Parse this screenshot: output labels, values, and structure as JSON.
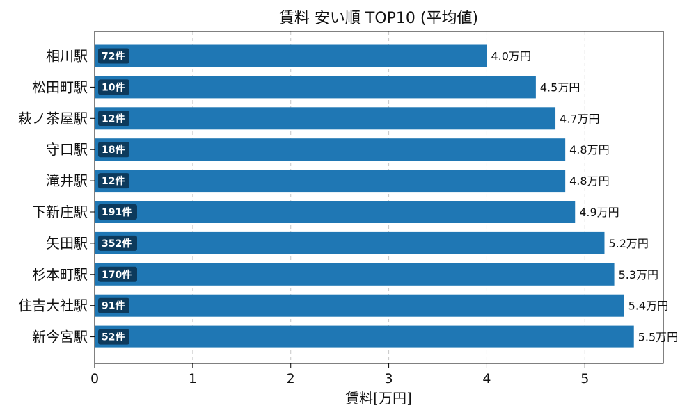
{
  "chart_data": {
    "type": "bar",
    "orientation": "horizontal",
    "title": "賃料 安い順 TOP10 (平均値)",
    "xlabel": "賃料[万円]",
    "ylabel": "",
    "xlim": [
      0,
      5.8
    ],
    "xticks": [
      0,
      1,
      2,
      3,
      4,
      5
    ],
    "grid": "x, dashed",
    "bar_color": "#1f77b4",
    "count_badge_color": "#0d3a5c",
    "categories": [
      "相川駅",
      "松田町駅",
      "萩ノ茶屋駅",
      "守口駅",
      "滝井駅",
      "下新庄駅",
      "矢田駅",
      "杉本町駅",
      "住吉大社駅",
      "新今宮駅"
    ],
    "values": [
      4.0,
      4.5,
      4.7,
      4.8,
      4.8,
      4.9,
      5.2,
      5.3,
      5.4,
      5.5
    ],
    "value_labels": [
      "4.0万円",
      "4.5万円",
      "4.7万円",
      "4.8万円",
      "4.8万円",
      "4.9万円",
      "5.2万円",
      "5.3万円",
      "5.4万円",
      "5.5万円"
    ],
    "count_labels": [
      "72件",
      "10件",
      "12件",
      "18件",
      "12件",
      "191件",
      "352件",
      "170件",
      "91件",
      "52件"
    ]
  }
}
